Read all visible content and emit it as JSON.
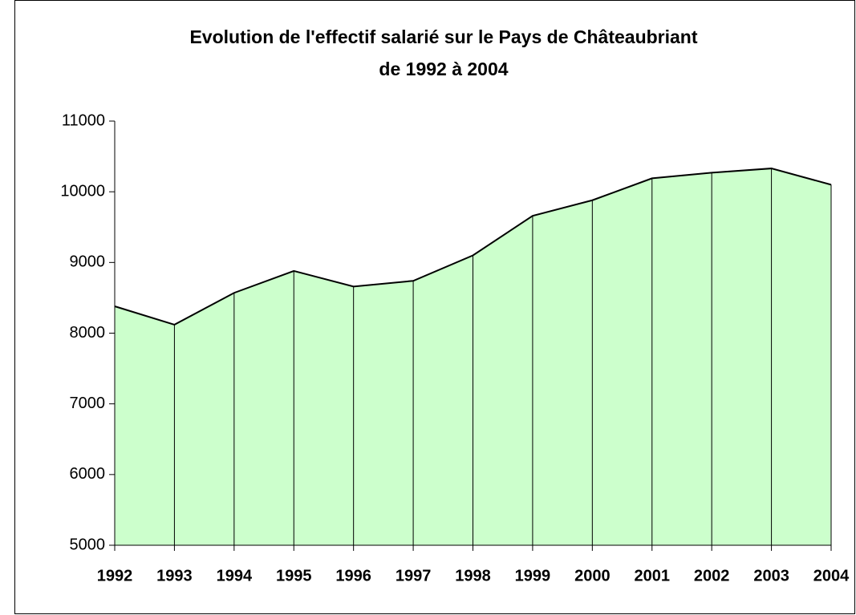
{
  "chart_data": {
    "type": "area",
    "title": [
      "Evolution de l'effectif salarié sur le Pays de Châteaubriant",
      "de 1992 à 2004"
    ],
    "categories": [
      "1992",
      "1993",
      "1994",
      "1995",
      "1996",
      "1997",
      "1998",
      "1999",
      "2000",
      "2001",
      "2002",
      "2003",
      "2004"
    ],
    "values": [
      8380,
      8120,
      8570,
      8880,
      8660,
      8740,
      9100,
      9660,
      9880,
      10190,
      10270,
      10330,
      10100
    ],
    "color": "#ccffcc",
    "ylim": [
      5000,
      11000
    ],
    "yticks": [
      5000,
      6000,
      7000,
      8000,
      9000,
      10000,
      11000
    ],
    "grid": false
  }
}
